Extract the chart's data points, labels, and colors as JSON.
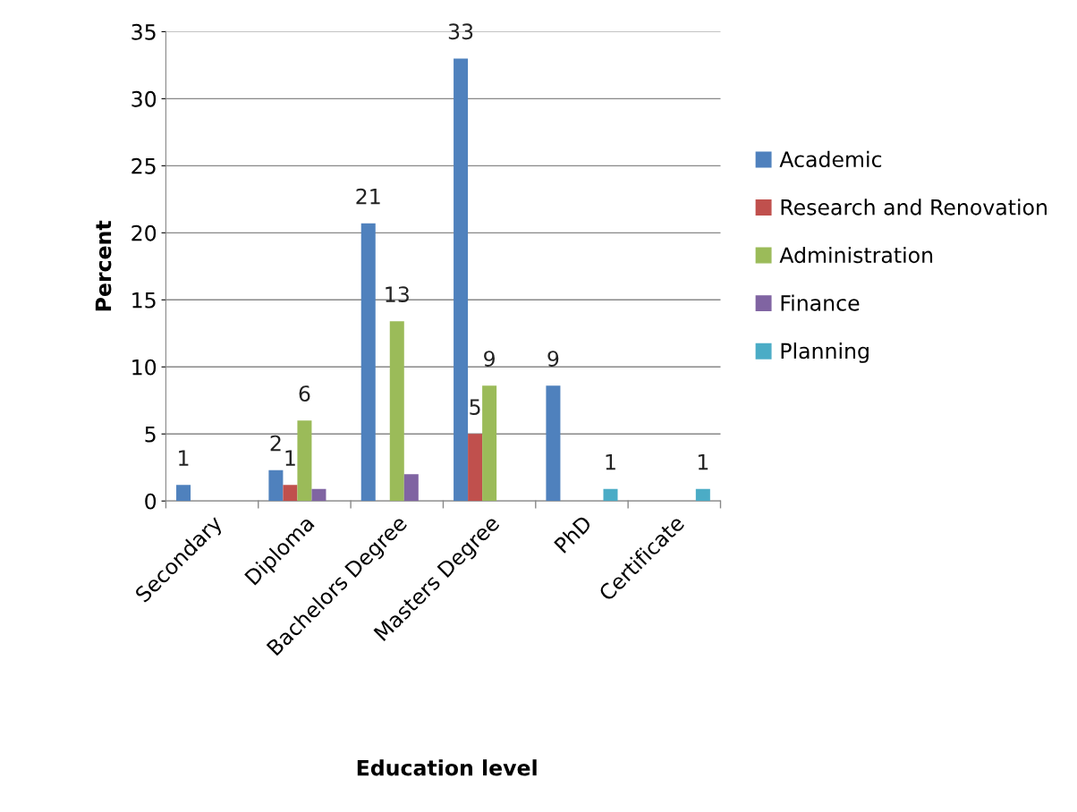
{
  "chart_data": {
    "type": "bar",
    "xlabel": "Education level",
    "ylabel": "Percent",
    "categories": [
      "Secondary",
      "Diploma",
      "Bachelors Degree",
      "Masters Degree",
      "PhD",
      "Certificate"
    ],
    "series": [
      {
        "name": "Academic",
        "color": "#4f81bd",
        "values": [
          1.2,
          2.3,
          20.7,
          33,
          8.6,
          null
        ],
        "value_labels": [
          "1",
          "2",
          "21",
          "33",
          "9",
          null
        ]
      },
      {
        "name": "Research and Renovation",
        "color": "#c0504d",
        "values": [
          null,
          1.2,
          null,
          5,
          null,
          null
        ],
        "value_labels": [
          null,
          "1",
          null,
          "5",
          null,
          null
        ]
      },
      {
        "name": "Administration",
        "color": "#9bbb59",
        "values": [
          null,
          6,
          13.4,
          8.6,
          null,
          null
        ],
        "value_labels": [
          null,
          "6",
          "13",
          "9",
          null,
          null
        ]
      },
      {
        "name": "Finance",
        "color": "#8064a2",
        "values": [
          null,
          0.9,
          2.0,
          null,
          null,
          null
        ],
        "value_labels": [
          null,
          null,
          null,
          null,
          null,
          null
        ]
      },
      {
        "name": "Planning",
        "color": "#4bacc6",
        "values": [
          null,
          null,
          null,
          null,
          0.9,
          0.9
        ],
        "value_labels": [
          null,
          null,
          null,
          null,
          "1",
          "1"
        ]
      }
    ],
    "ylim": [
      0,
      35
    ],
    "yticks": [
      0,
      5,
      10,
      15,
      20,
      25,
      30,
      35
    ],
    "grid": "y",
    "legend": "right"
  }
}
